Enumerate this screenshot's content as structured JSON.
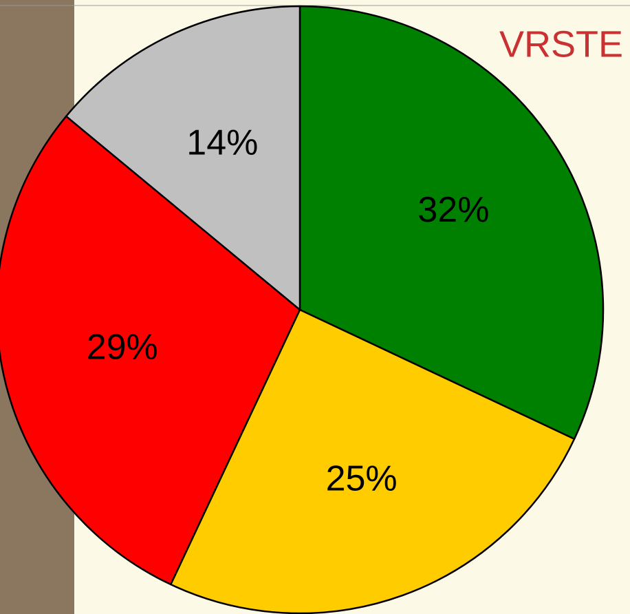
{
  "chart_data": {
    "type": "pie",
    "title": "VRSTE",
    "values": [
      32,
      25,
      29,
      14
    ],
    "value_labels": [
      "32%",
      "25%",
      "29%",
      "14%"
    ],
    "colors": [
      "#008000",
      "#ffcc00",
      "#ff0000",
      "#c0c0c0"
    ]
  }
}
